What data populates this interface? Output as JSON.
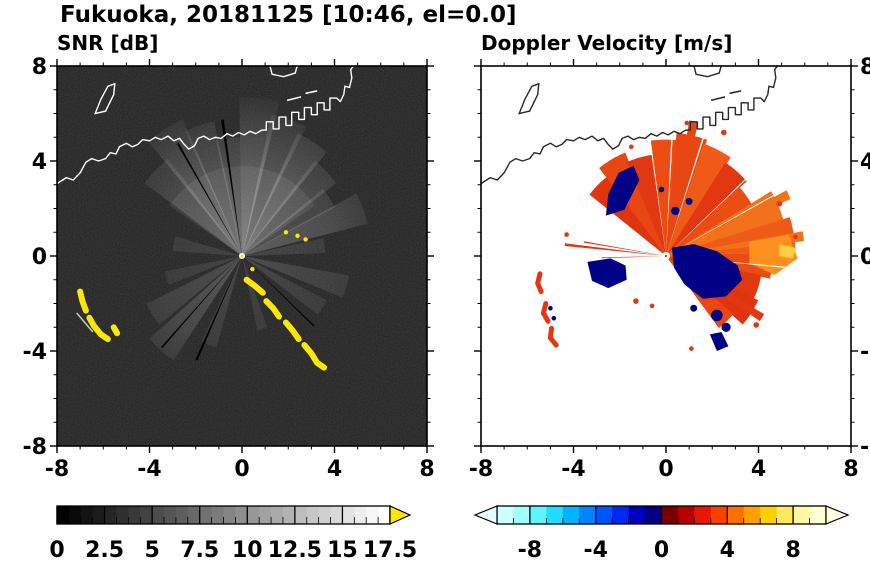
{
  "title": "Fukuoka, 20181125 [10:46, el=0.0]",
  "panels": {
    "snr": {
      "label": "SNR [dB]"
    },
    "doppler": {
      "label": "Doppler Velocity [m/s]"
    }
  },
  "axes": {
    "xtick_values": [
      -8,
      -4,
      0,
      4,
      8
    ],
    "xtick_labels": [
      "-8",
      "-4",
      "0",
      "4",
      "8"
    ],
    "ytick_values": [
      8,
      4,
      0,
      -4,
      -8
    ],
    "ytick_labels": [
      "8",
      "4",
      "0",
      "-4",
      "-8"
    ],
    "minor_tick_step": 1,
    "xlim": [
      -8,
      8
    ],
    "ylim": [
      -8,
      8
    ]
  },
  "colorbars": {
    "snr": {
      "range": [
        0,
        17.5
      ],
      "tick_values": [
        0,
        2.5,
        5,
        7.5,
        10,
        12.5,
        15,
        17.5
      ],
      "tick_labels": [
        "0",
        "2.5",
        "5",
        "7.5",
        "10",
        "12.5",
        "15",
        "17.5"
      ]
    },
    "doppler": {
      "range": [
        -10,
        10
      ],
      "tick_values": [
        -8,
        -4,
        0,
        4,
        8
      ],
      "tick_labels": [
        "-8",
        "-4",
        "0",
        "4",
        "8"
      ]
    }
  },
  "colors": {
    "frame": "#000000",
    "snr_background": "#000000",
    "snr_beam": "#ffffff",
    "snr_clutter": "#ffe800",
    "snr_over_arrow": "#ffe800",
    "snr_cmap_start": "#000000",
    "snr_cmap_end": "#ffffff",
    "coast_snr": "#ffffff",
    "coast_doppler": "#282828",
    "doppler_negative": "#000085",
    "doppler_positive": "#e23812",
    "doppler_under_arrow": "#e4ffff",
    "doppler_over_arrow": "#ffffe4",
    "doppler_cmap": [
      "#d0ffff",
      "#a0ffff",
      "#60f4ff",
      "#20dcff",
      "#00b4ff",
      "#0084ff",
      "#0054ff",
      "#0028f0",
      "#0000c0",
      "#000080",
      "#780000",
      "#b40000",
      "#e81800",
      "#ff4000",
      "#ff7000",
      "#ffa000",
      "#ffd000",
      "#ffe860",
      "#fff8a0",
      "#ffffd0"
    ]
  },
  "chart_data": [
    {
      "type": "heatmap",
      "title": "SNR [dB]",
      "xlabel": "",
      "ylabel": "",
      "xlim": [
        -8,
        8
      ],
      "ylim": [
        -8,
        8
      ],
      "xticks": [
        -8,
        -4,
        0,
        4,
        8
      ],
      "yticks": [
        -8,
        -4,
        0,
        4,
        8
      ],
      "grid": false,
      "colorbar": {
        "range": [
          0,
          17.5
        ],
        "ticks": [
          0,
          2.5,
          5,
          7.5,
          10,
          12.5,
          15,
          17.5
        ],
        "colormap": "black-to-white grayscale, yellow over-range arrow",
        "orientation": "horizontal below panel"
      },
      "description": "Radar PPI of signal-to-noise ratio around radar at origin. Black speckled background; bright gray beams fan out mainly toward N-NE up to r=6.5 with thin black shadow rays; fainter beams to E, SE and SW; white coastline of Fukuoka bay along top with blocky harbor; yellow high-SNR clutter arcs SW of radar near (-6.6,-2.5) and along an arc from (0.2,-1) to (3.5,-4.7)."
    },
    {
      "type": "heatmap",
      "title": "Doppler Velocity [m/s]",
      "xlabel": "",
      "ylabel": "",
      "xlim": [
        -8,
        8
      ],
      "ylim": [
        -8,
        8
      ],
      "xticks": [
        -8,
        -4,
        0,
        4,
        8
      ],
      "yticks": [
        -8,
        -4,
        0,
        4,
        8
      ],
      "grid": false,
      "colorbar": {
        "range": [
          -10,
          10
        ],
        "ticks": [
          -8,
          -4,
          0,
          4,
          8
        ],
        "colormap": "diverging cyan-blue-navy to dark red-red-orange-yellow, arrows both ends",
        "orientation": "horizontal below panel"
      },
      "description": "Doppler velocity field on white background. Large red/orange fan (positive velocity) covering N through SE of radar up to r=5.5; dark navy (negative) blobs immediately E of center (0.3..3.3, -1.8..0.4) and W of center (-3.4..-1.7, -1.4..-0.1); navy streak to NW near (-2,3); small red arcs far SW near x=-5.2; thin red rays due W; black coastline along top."
    }
  ],
  "geometry": {
    "units": "data coordinates, radar at origin, axes -8..8",
    "coastline": {
      "main": [
        [
          -8.0,
          3.05
        ],
        [
          -7.6,
          3.3
        ],
        [
          -7.3,
          3.2
        ],
        [
          -7.0,
          3.5
        ],
        [
          -6.75,
          3.95
        ],
        [
          -6.5,
          4.1
        ],
        [
          -6.2,
          4.0
        ],
        [
          -5.9,
          4.1
        ],
        [
          -5.7,
          4.35
        ],
        [
          -5.45,
          4.3
        ],
        [
          -5.3,
          4.6
        ],
        [
          -5.0,
          4.75
        ],
        [
          -4.75,
          4.6
        ],
        [
          -4.5,
          4.7
        ],
        [
          -4.3,
          4.9
        ],
        [
          -4.0,
          4.85
        ],
        [
          -3.75,
          5.0
        ],
        [
          -3.5,
          4.9
        ],
        [
          -3.2,
          5.05
        ],
        [
          -2.95,
          4.85
        ],
        [
          -2.7,
          4.95
        ],
        [
          -2.5,
          4.7
        ],
        [
          -2.3,
          4.5
        ],
        [
          -2.05,
          4.65
        ],
        [
          -1.9,
          4.95
        ],
        [
          -1.65,
          5.05
        ],
        [
          -1.4,
          4.9
        ],
        [
          -1.15,
          5.0
        ],
        [
          -0.9,
          4.95
        ],
        [
          -0.65,
          5.15
        ],
        [
          -0.4,
          5.05
        ],
        [
          -0.15,
          5.2
        ],
        [
          0.1,
          5.1
        ],
        [
          0.35,
          5.25
        ],
        [
          0.6,
          5.15
        ],
        [
          0.85,
          5.3
        ],
        [
          1.05,
          5.3
        ],
        [
          1.05,
          5.65
        ],
        [
          1.35,
          5.65
        ],
        [
          1.35,
          5.35
        ],
        [
          1.6,
          5.35
        ],
        [
          1.6,
          5.85
        ],
        [
          1.9,
          5.85
        ],
        [
          1.9,
          5.5
        ],
        [
          2.15,
          5.5
        ],
        [
          2.15,
          6.05
        ],
        [
          2.45,
          6.05
        ],
        [
          2.45,
          5.75
        ],
        [
          2.7,
          5.75
        ],
        [
          2.7,
          6.25
        ],
        [
          3.0,
          6.25
        ],
        [
          3.0,
          5.95
        ],
        [
          3.25,
          5.95
        ],
        [
          3.25,
          6.45
        ],
        [
          3.55,
          6.45
        ],
        [
          3.55,
          6.15
        ],
        [
          3.8,
          6.15
        ],
        [
          3.8,
          6.65
        ],
        [
          4.1,
          6.65
        ],
        [
          4.25,
          6.5
        ],
        [
          4.4,
          6.8
        ],
        [
          4.45,
          7.15
        ],
        [
          4.65,
          7.1
        ],
        [
          4.75,
          7.5
        ],
        [
          4.7,
          7.85
        ],
        [
          4.85,
          8.05
        ]
      ],
      "island": [
        [
          -6.35,
          6.0
        ],
        [
          -6.1,
          6.6
        ],
        [
          -5.8,
          7.15
        ],
        [
          -5.5,
          7.25
        ],
        [
          -5.55,
          6.8
        ],
        [
          -5.9,
          6.1
        ]
      ],
      "breakwaters": [
        [
          [
            1.95,
            6.55
          ],
          [
            2.55,
            6.7
          ]
        ],
        [
          [
            2.75,
            6.85
          ],
          [
            3.25,
            6.95
          ]
        ]
      ],
      "top_feature": [
        [
          1.2,
          8.05
        ],
        [
          1.3,
          7.65
        ],
        [
          1.8,
          7.55
        ],
        [
          2.3,
          7.7
        ],
        [
          2.4,
          8.05
        ]
      ]
    },
    "snr": {
      "beams": [
        [
          -54,
          -38,
          5.2,
          0.2
        ],
        [
          -40,
          -24,
          6.3,
          0.3
        ],
        [
          -25,
          -12,
          5.8,
          0.26
        ],
        [
          -13,
          -1,
          5.0,
          0.24
        ],
        [
          -1,
          14,
          6.7,
          0.34
        ],
        [
          12,
          27,
          6.1,
          0.28
        ],
        [
          25,
          40,
          5.7,
          0.3
        ],
        [
          38,
          53,
          5.1,
          0.22
        ],
        [
          51,
          63,
          4.5,
          0.18
        ],
        [
          62,
          76,
          5.6,
          0.24
        ],
        [
          78,
          88,
          3.6,
          0.12
        ],
        [
          100,
          112,
          4.7,
          0.15
        ],
        [
          117,
          127,
          4.1,
          0.12
        ],
        [
          160,
          168,
          3.2,
          0.1
        ],
        [
          196,
          206,
          4.0,
          0.12
        ],
        [
          214,
          229,
          5.3,
          0.2
        ],
        [
          231,
          244,
          4.6,
          0.15
        ],
        [
          249,
          259,
          3.4,
          0.1
        ],
        [
          274,
          286,
          3.0,
          0.1
        ],
        [
          -56,
          56,
          3.8,
          0.12
        ]
      ],
      "dark_rays": [
        [
          -9,
          -7.8,
          5.8
        ],
        [
          -30.8,
          -29.9,
          5.5
        ],
        [
          203.6,
          204.8,
          4.8
        ],
        [
          221.6,
          222.4,
          5.2
        ],
        [
          133,
          133.8,
          4.3
        ]
      ],
      "clutter": [
        [
          [
            0.2,
            -1.0
          ],
          [
            0.55,
            -1.25
          ],
          [
            0.9,
            -1.55
          ]
        ],
        [
          [
            1.05,
            -1.9
          ],
          [
            1.35,
            -2.2
          ],
          [
            1.6,
            -2.55
          ]
        ],
        [
          [
            1.9,
            -2.8
          ],
          [
            2.2,
            -3.15
          ],
          [
            2.45,
            -3.5
          ]
        ],
        [
          [
            2.7,
            -3.75
          ],
          [
            3.0,
            -4.1
          ],
          [
            3.25,
            -4.5
          ],
          [
            3.55,
            -4.7
          ]
        ],
        [
          [
            -7.0,
            -1.5
          ],
          [
            -6.9,
            -1.9
          ],
          [
            -6.75,
            -2.3
          ]
        ],
        [
          [
            -6.6,
            -2.6
          ],
          [
            -6.4,
            -2.95
          ],
          [
            -6.1,
            -3.3
          ],
          [
            -5.8,
            -3.5
          ]
        ],
        [
          [
            -5.55,
            -3.0
          ],
          [
            -5.4,
            -3.25
          ]
        ]
      ],
      "yellow_dots": [
        [
          2.4,
          0.85
        ],
        [
          2.75,
          0.7
        ],
        [
          1.9,
          1.0
        ],
        [
          0.45,
          -0.55
        ]
      ],
      "white_streaks": [
        [
          [
            -7.15,
            -2.4
          ],
          [
            -6.45,
            -3.2
          ]
        ]
      ]
    },
    "doppler": {
      "wedges": [
        [
          -52,
          -36,
          4.2,
          "#e03410"
        ],
        [
          -38,
          -22,
          4.7,
          "#e84612"
        ],
        [
          -23,
          -8,
          4.3,
          "#e23812"
        ],
        [
          -8,
          6,
          4.9,
          "#ea4c12"
        ],
        [
          5,
          20,
          5.2,
          "#e84612"
        ],
        [
          10,
          14,
          5.8,
          "#e84612"
        ],
        [
          19,
          34,
          5.0,
          "#ef5a16"
        ],
        [
          33,
          48,
          4.7,
          "#e23812"
        ],
        [
          47,
          60,
          4.3,
          "#ea4c12"
        ],
        [
          59,
          74,
          5.3,
          "#f2711b"
        ],
        [
          62,
          66,
          5.9,
          "#f2711b"
        ],
        [
          73,
          88,
          5.6,
          "#ef5a16"
        ],
        [
          80,
          84,
          6.0,
          "#f2711b"
        ],
        [
          88,
          102,
          4.6,
          "#ea4c12"
        ],
        [
          101,
          116,
          4.2,
          "#e23812"
        ],
        [
          115,
          131,
          4.4,
          "#e03410"
        ],
        [
          120,
          124,
          4.9,
          "#e23812"
        ],
        [
          130,
          143,
          3.8,
          "#e84612"
        ]
      ],
      "east_patches": [
        {
          "pts": [
            [
              3.6,
              0.6
            ],
            [
              5.3,
              0.9
            ],
            [
              5.7,
              -0.1
            ],
            [
              4.7,
              -0.8
            ],
            [
              3.6,
              -0.3
            ]
          ],
          "c": "#ff9020"
        },
        {
          "pts": [
            [
              4.9,
              0.5
            ],
            [
              5.6,
              0.35
            ],
            [
              5.5,
              -0.1
            ],
            [
              4.9,
              0.0
            ]
          ],
          "c": "#ffcf40"
        }
      ],
      "white_gaps": [
        [
          2.6,
          3.3,
          6
        ],
        [
          17.6,
          18.3,
          6
        ],
        [
          -8.3,
          -7.7,
          5.5
        ],
        [
          46.6,
          47.2,
          5
        ],
        [
          95,
          95.6,
          5.7
        ],
        [
          61,
          61.5,
          5.5
        ]
      ],
      "navy_polys": [
        [
          [
            0.25,
            0.35
          ],
          [
            1.2,
            0.5
          ],
          [
            2.2,
            0.2
          ],
          [
            3.1,
            -0.4
          ],
          [
            3.3,
            -1.0
          ],
          [
            2.6,
            -1.7
          ],
          [
            1.6,
            -1.8
          ],
          [
            0.8,
            -1.2
          ],
          [
            0.35,
            -0.5
          ]
        ],
        [
          [
            -3.4,
            -0.25
          ],
          [
            -2.4,
            -0.1
          ],
          [
            -1.75,
            -0.4
          ],
          [
            -1.7,
            -1.0
          ],
          [
            -2.5,
            -1.35
          ],
          [
            -3.2,
            -1.05
          ]
        ],
        [
          [
            -2.6,
            1.7
          ],
          [
            -1.8,
            1.95
          ],
          [
            -1.15,
            3.2
          ],
          [
            -1.4,
            3.8
          ],
          [
            -2.05,
            3.5
          ],
          [
            -2.5,
            2.6
          ]
        ],
        [
          [
            1.9,
            -3.3
          ],
          [
            2.4,
            -3.2
          ],
          [
            2.7,
            -3.8
          ],
          [
            2.2,
            -4.0
          ]
        ]
      ],
      "navy_dots": [
        [
          0.4,
          1.9,
          0.18
        ],
        [
          1.0,
          2.3,
          0.15
        ],
        [
          2.2,
          -2.5,
          0.25
        ],
        [
          2.6,
          -3.0,
          0.2
        ],
        [
          1.2,
          -2.2,
          0.15
        ],
        [
          -0.2,
          2.8,
          0.12
        ],
        [
          -5.0,
          -2.2,
          0.1
        ],
        [
          -4.85,
          -2.62,
          0.1
        ]
      ],
      "red_rays": [
        [
          275.5,
          277,
          4.4
        ],
        [
          279,
          280,
          3.6
        ],
        [
          268,
          268.8,
          2.8
        ]
      ],
      "red_arcs": [
        [
          [
            -5.45,
            -0.75
          ],
          [
            -5.55,
            -1.15
          ],
          [
            -5.4,
            -1.5
          ]
        ],
        [
          [
            -5.2,
            -2.0
          ],
          [
            -5.3,
            -2.4
          ],
          [
            -5.1,
            -2.75
          ]
        ],
        [
          [
            -4.95,
            -3.05
          ],
          [
            -5.0,
            -3.45
          ],
          [
            -4.75,
            -3.75
          ]
        ]
      ],
      "red_dots": [
        [
          0.9,
          5.6,
          0.1
        ],
        [
          2.5,
          5.2,
          0.12
        ],
        [
          -1.5,
          4.6,
          0.1
        ],
        [
          4.9,
          2.2,
          0.12
        ],
        [
          5.6,
          0.8,
          0.1
        ],
        [
          3.9,
          -2.9,
          0.12
        ],
        [
          1.1,
          -3.9,
          0.1
        ],
        [
          -0.6,
          -2.1,
          0.1
        ],
        [
          -1.3,
          -1.9,
          0.12
        ],
        [
          -4.3,
          0.9,
          0.1
        ]
      ]
    }
  }
}
